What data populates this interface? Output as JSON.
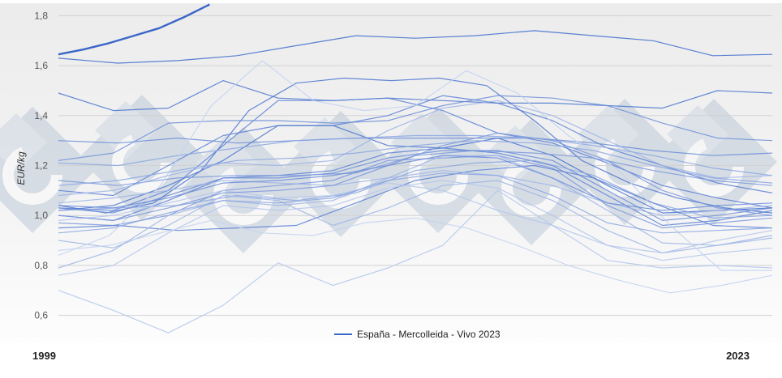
{
  "chart_data": {
    "type": "line",
    "title": "",
    "xlabel": "",
    "ylabel": "EUR/kg",
    "ylim": [
      0.55,
      1.85
    ],
    "y_ticks": [
      "0,6",
      "0,8",
      "1,0",
      "1,2",
      "1,4",
      "1,6",
      "1,8"
    ],
    "x_weeks": [
      1,
      52
    ],
    "grid": true,
    "legend_position": "bottom",
    "legend_entries": [
      {
        "label": "España - Mercolleida - Vivo 2023",
        "color": "#3a66c9"
      }
    ],
    "year_labels": {
      "start": "1999",
      "end": "2023"
    },
    "highlight_series": {
      "name": "España - Mercolleida - Vivo 2023",
      "color": "#3a66c9",
      "values": [
        1.645,
        1.665,
        1.69,
        1.72,
        1.75,
        1.795,
        1.845
      ]
    },
    "background_series": [
      {
        "color": "#3d6bcc",
        "values": [
          1.63,
          1.61,
          1.62,
          1.64,
          1.68,
          1.72,
          1.71,
          1.72,
          1.74,
          1.72,
          1.7,
          1.64,
          1.645
        ]
      },
      {
        "color": "#4a74cf",
        "values": [
          1.49,
          1.42,
          1.43,
          1.54,
          1.47,
          1.46,
          1.47,
          1.46,
          1.45,
          1.45,
          1.44,
          1.43,
          1.5,
          1.49
        ]
      },
      {
        "color": "#4a74cf",
        "values": [
          1.04,
          1.01,
          1.05,
          1.18,
          1.42,
          1.53,
          1.55,
          1.54,
          1.55,
          1.52,
          1.38,
          1.22,
          1.13,
          1.07,
          1.03,
          1.01
        ]
      },
      {
        "color": "#5a80d4",
        "values": [
          1.03,
          1.02,
          1.1,
          1.28,
          1.46,
          1.46,
          1.47,
          1.42,
          1.33,
          1.29,
          1.21,
          1.12,
          1.07,
          1.03
        ]
      },
      {
        "color": "#5a80d4",
        "values": [
          1.1,
          1.08,
          1.2,
          1.32,
          1.36,
          1.36,
          1.4,
          1.48,
          1.45,
          1.38,
          1.27,
          1.2,
          1.13,
          1.09
        ]
      },
      {
        "color": "#6b8dd8",
        "values": [
          1.22,
          1.25,
          1.37,
          1.38,
          1.38,
          1.37,
          1.38,
          1.44,
          1.48,
          1.47,
          1.44,
          1.37,
          1.31,
          1.3
        ]
      },
      {
        "color": "#6b8dd8",
        "values": [
          1.3,
          1.29,
          1.31,
          1.29,
          1.3,
          1.31,
          1.31,
          1.31,
          1.31,
          1.29,
          1.26,
          1.24,
          1.25
        ]
      },
      {
        "color": "#4a74cf",
        "values": [
          1.02,
          1.04,
          1.12,
          1.22,
          1.36,
          1.36,
          1.28,
          1.27,
          1.31,
          1.24,
          1.12,
          1.01,
          1.02,
          1.03
        ]
      },
      {
        "color": "#5a80d4",
        "values": [
          1.0,
          0.98,
          1.06,
          1.15,
          1.16,
          1.18,
          1.25,
          1.27,
          1.25,
          1.2,
          1.08,
          0.96,
          0.98,
          1.02
        ]
      },
      {
        "color": "#6b8dd8",
        "values": [
          1.03,
          1.01,
          1.08,
          1.15,
          1.15,
          1.17,
          1.23,
          1.26,
          1.26,
          1.22,
          1.1,
          0.98,
          1.0,
          1.03
        ]
      },
      {
        "color": "#7a98dc",
        "values": [
          0.97,
          0.96,
          1.0,
          1.1,
          1.12,
          1.14,
          1.22,
          1.23,
          1.24,
          1.19,
          1.04,
          0.95,
          0.97,
          0.99
        ]
      },
      {
        "color": "#8aa6e0",
        "values": [
          1.02,
          1.03,
          1.04,
          1.08,
          1.06,
          1.09,
          1.18,
          1.21,
          1.22,
          1.16,
          1.05,
          0.99,
          1.0
        ]
      },
      {
        "color": "#5a80d4",
        "values": [
          0.95,
          0.96,
          0.94,
          0.95,
          0.96,
          1.05,
          1.14,
          1.18,
          1.2,
          1.15,
          1.05,
          0.96,
          0.95
        ]
      },
      {
        "color": "#7a98dc",
        "values": [
          1.14,
          1.12,
          1.15,
          1.16,
          1.16,
          1.17,
          1.24,
          1.26,
          1.25,
          1.23,
          1.18,
          1.14,
          1.12
        ]
      },
      {
        "color": "#8aa6e0",
        "values": [
          1.21,
          1.2,
          1.24,
          1.27,
          1.3,
          1.31,
          1.32,
          1.32,
          1.31,
          1.28,
          1.24,
          1.19,
          1.16
        ]
      },
      {
        "color": "#9db4e5",
        "values": [
          0.79,
          0.86,
          1.0,
          1.06,
          1.04,
          1.06,
          1.15,
          1.24,
          1.24,
          1.15,
          1.02,
          0.89,
          0.88,
          0.92
        ]
      },
      {
        "color": "#9db4e5",
        "values": [
          0.9,
          0.87,
          0.96,
          1.08,
          1.06,
          0.96,
          1.03,
          1.12,
          1.14,
          1.06,
          0.94,
          0.85,
          0.88,
          0.91
        ]
      },
      {
        "color": "#b3c5ec",
        "values": [
          0.76,
          0.8,
          0.93,
          1.04,
          1.02,
          1.04,
          1.11,
          1.14,
          1.11,
          1.0,
          0.88,
          0.82,
          0.85,
          0.87
        ]
      },
      {
        "color": "#b3c5ec",
        "values": [
          0.7,
          0.62,
          0.53,
          0.64,
          0.81,
          0.72,
          0.79,
          0.88,
          1.1,
          0.96,
          0.82,
          0.79,
          0.8,
          0.79
        ]
      },
      {
        "color": "#c3d2f0",
        "values": [
          0.84,
          0.92,
          1.12,
          1.44,
          1.62,
          1.46,
          1.42,
          1.44,
          1.58,
          1.49,
          1.32,
          1.18,
          0.96,
          0.78,
          0.78
        ]
      },
      {
        "color": "#c3d2f0",
        "values": [
          0.86,
          0.88,
          0.93,
          0.98,
          0.93,
          0.92,
          0.97,
          0.99,
          0.95,
          0.88,
          0.8,
          0.74,
          0.69,
          0.72,
          0.76
        ]
      },
      {
        "color": "#b3c5ec",
        "values": [
          0.98,
          1.0,
          1.05,
          1.1,
          1.07,
          1.08,
          1.13,
          1.1,
          1.02,
          0.96,
          0.88,
          0.85,
          0.9,
          0.94
        ]
      },
      {
        "color": "#9db4e5",
        "values": [
          1.05,
          1.07,
          1.1,
          1.14,
          1.13,
          1.12,
          1.15,
          1.18,
          1.16,
          1.12,
          1.05,
          1.0,
          1.02,
          1.04
        ]
      },
      {
        "color": "#9db4e5",
        "values": [
          1.08,
          1.1,
          1.16,
          1.21,
          1.2,
          1.22,
          1.34,
          1.43,
          1.46,
          1.4,
          1.3,
          1.2,
          1.15,
          1.16
        ]
      },
      {
        "color": "#8aa6e0",
        "values": [
          1.12,
          1.14,
          1.18,
          1.22,
          1.23,
          1.25,
          1.28,
          1.3,
          1.29,
          1.26,
          1.2,
          1.15,
          1.13
        ]
      },
      {
        "color": "#7a98dc",
        "values": [
          1.0,
          0.98,
          1.03,
          1.09,
          1.1,
          1.12,
          1.2,
          1.28,
          1.33,
          1.3,
          1.22,
          1.1,
          1.03,
          1.0
        ]
      },
      {
        "color": "#6b8dd8",
        "values": [
          1.04,
          1.03,
          1.07,
          1.13,
          1.14,
          1.16,
          1.2,
          1.24,
          1.23,
          1.15,
          1.05,
          1.02,
          1.04,
          1.05
        ]
      },
      {
        "color": "#8aa6e0",
        "values": [
          0.93,
          0.95,
          1.01,
          1.06,
          1.05,
          1.07,
          1.14,
          1.17,
          1.16,
          1.08,
          0.97,
          0.93,
          0.94,
          0.95
        ]
      }
    ]
  }
}
